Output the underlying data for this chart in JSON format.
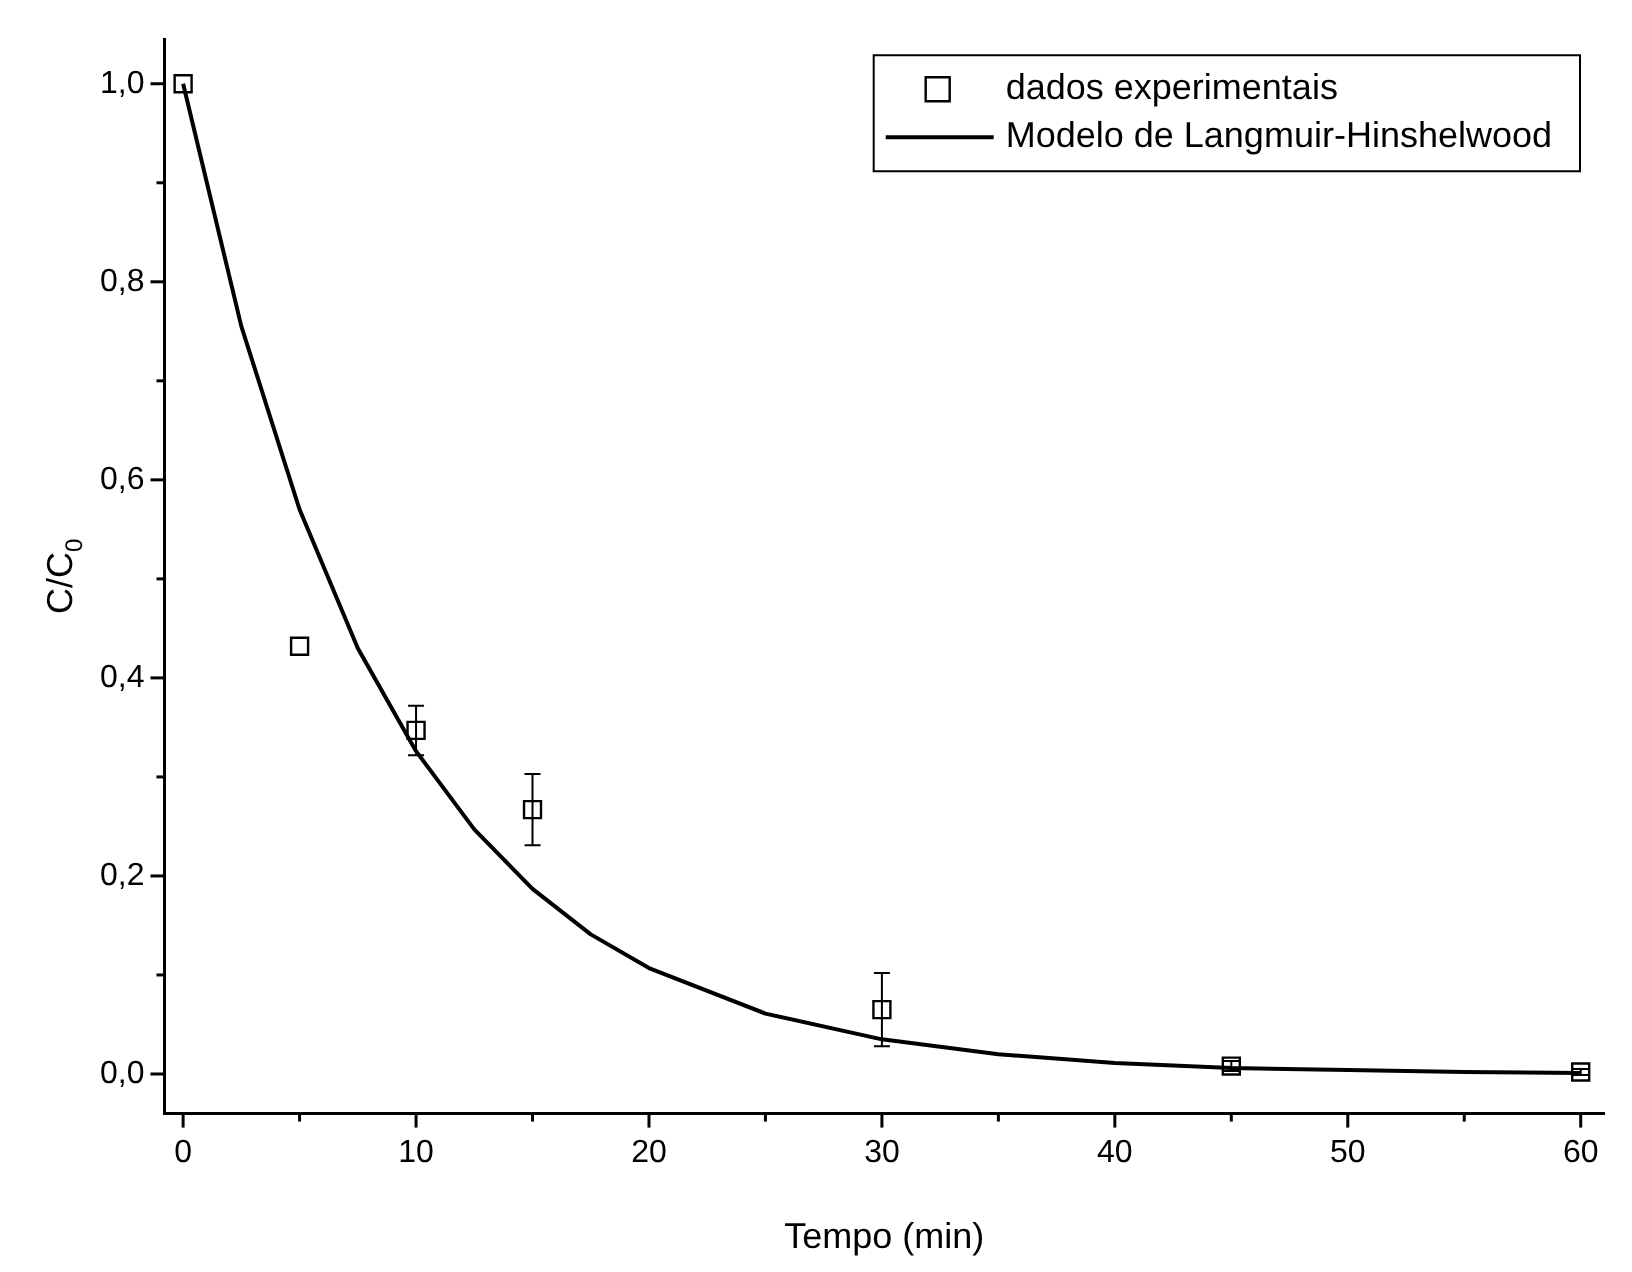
{
  "chart_data": {
    "type": "scatter",
    "xlabel": "Tempo (min)",
    "ylabel": "C/C$_{0}$",
    "xlim": [
      -0.8,
      61
    ],
    "ylim": [
      -0.04,
      1.045
    ],
    "xticks": [
      0,
      {
        "value": 5,
        "label": null
      },
      10,
      {
        "value": 15,
        "label": null
      },
      20,
      {
        "value": 25,
        "label": null
      },
      30,
      {
        "value": 35,
        "label": null
      },
      40,
      {
        "value": 45,
        "label": null
      },
      50,
      {
        "value": 55,
        "label": null
      },
      60
    ],
    "yticks": [
      {
        "value": 0,
        "label": "0,0"
      },
      {
        "value": 0.1,
        "label": null
      },
      {
        "value": 0.2,
        "label": "0,2"
      },
      {
        "value": 0.3,
        "label": null
      },
      {
        "value": 0.4,
        "label": "0,4"
      },
      {
        "value": 0.5,
        "label": null
      },
      {
        "value": 0.6,
        "label": "0,6"
      },
      {
        "value": 0.7,
        "label": null
      },
      {
        "value": 0.8,
        "label": "0,8"
      },
      {
        "value": 0.9,
        "label": null
      },
      {
        "value": 1.0,
        "label": "1,0"
      }
    ],
    "grid": false,
    "legend": "top right",
    "series": [
      {
        "name": "dados experimentais",
        "type": "scatter",
        "marker": "square",
        "color": "#000000",
        "x": [
          0,
          5,
          10,
          15,
          30,
          45,
          60
        ],
        "values": [
          1.0,
          0.432,
          0.347,
          0.267,
          0.065,
          0.008,
          0.002
        ],
        "errors": [
          null,
          null,
          0.025,
          0.036,
          0.037,
          0.005,
          0.003
        ]
      },
      {
        "name": "Modelo de Langmuir-Hinshelwood",
        "type": "line",
        "marker": "none",
        "line_style": "solid",
        "color": "#000000",
        "x": [
          0,
          2.5,
          5,
          7.5,
          10,
          12.5,
          15,
          17.5,
          20,
          25,
          30,
          35,
          40,
          45,
          50,
          55,
          60
        ],
        "values": [
          1.0,
          0.755,
          0.57,
          0.43,
          0.326,
          0.247,
          0.187,
          0.141,
          0.107,
          0.061,
          0.035,
          0.02,
          0.011,
          0.006,
          0.004,
          0.002,
          0.001
        ]
      }
    ]
  }
}
